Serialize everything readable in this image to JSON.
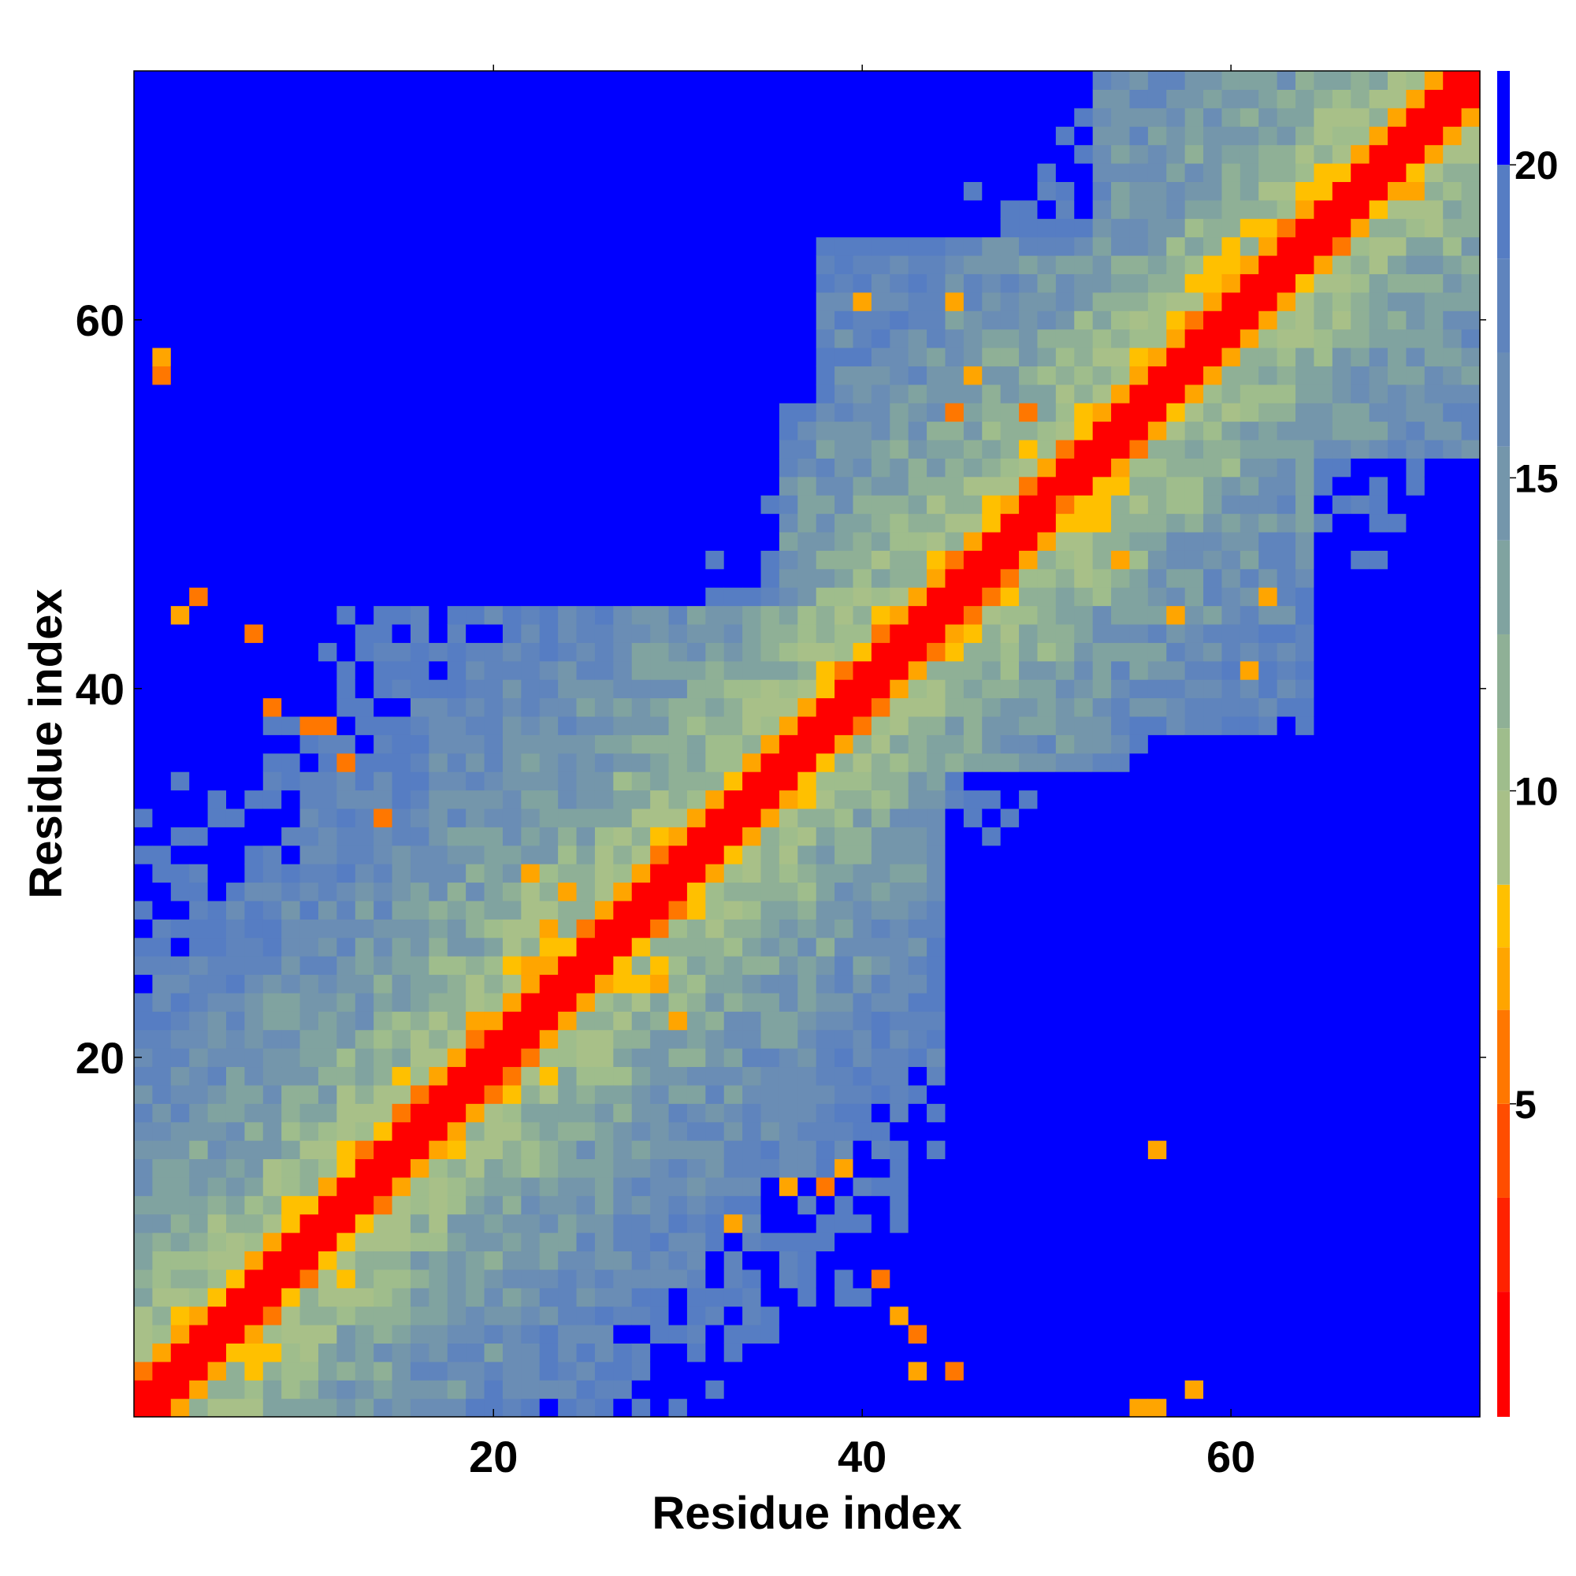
{
  "chart_data": {
    "type": "heatmap",
    "title": "",
    "xlabel": "Residue index",
    "ylabel": "Residue index",
    "n_residues": 73,
    "xlim": [
      0.5,
      73.5
    ],
    "ylim": [
      0.5,
      73.5
    ],
    "x_ticks": [
      20,
      40,
      60
    ],
    "y_ticks": [
      20,
      40,
      60
    ],
    "colorbar": {
      "ticks": [
        5,
        10,
        15,
        20
      ],
      "range": [
        0,
        21.5
      ],
      "levels": [
        {
          "upper": 2.0,
          "color": "#ff0000"
        },
        {
          "upper": 3.5,
          "color": "#ff2200"
        },
        {
          "upper": 5.0,
          "color": "#ff4d00"
        },
        {
          "upper": 6.5,
          "color": "#ff7700"
        },
        {
          "upper": 7.5,
          "color": "#ffa500"
        },
        {
          "upper": 8.5,
          "color": "#ffc000"
        },
        {
          "upper": 10.0,
          "color": "#a8c088"
        },
        {
          "upper": 11.0,
          "color": "#9fbd8c"
        },
        {
          "upper": 12.5,
          "color": "#8fb096"
        },
        {
          "upper": 14.0,
          "color": "#80a3a0"
        },
        {
          "upper": 15.5,
          "color": "#7496ab"
        },
        {
          "upper": 17.0,
          "color": "#6a8db5"
        },
        {
          "upper": 18.5,
          "color": "#5f84bd"
        },
        {
          "upper": 20.0,
          "color": "#567dc3"
        },
        {
          "upper": 999,
          "color": "#0000ff"
        }
      ]
    },
    "description_of_values": "Pairwise residue distance map: value(i,j) grows with |i-j|; diagonal ~0 (red), near-diagonal orange, mid-range green/blue-gray, long-range blue (>20).",
    "contacts": [
      {
        "i": 10,
        "j": 38,
        "value": 6
      },
      {
        "i": 11,
        "j": 38,
        "value": 5.5
      },
      {
        "i": 12,
        "j": 36,
        "value": 6
      },
      {
        "i": 14,
        "j": 33,
        "value": 5
      },
      {
        "i": 8,
        "j": 39,
        "value": 5
      },
      {
        "i": 7,
        "j": 43,
        "value": 6
      },
      {
        "i": 3,
        "j": 44,
        "value": 7
      },
      {
        "i": 4,
        "j": 45,
        "value": 5
      },
      {
        "i": 2,
        "j": 57,
        "value": 6
      },
      {
        "i": 2,
        "j": 58,
        "value": 7
      },
      {
        "i": 36,
        "j": 13,
        "value": 7
      },
      {
        "i": 38,
        "j": 13,
        "value": 6
      },
      {
        "i": 39,
        "j": 14,
        "value": 7
      },
      {
        "i": 41,
        "j": 8,
        "value": 5
      },
      {
        "i": 43,
        "j": 5,
        "value": 6
      },
      {
        "i": 42,
        "j": 6,
        "value": 7
      },
      {
        "i": 45,
        "j": 3,
        "value": 5
      },
      {
        "i": 43,
        "j": 3,
        "value": 7
      },
      {
        "i": 58,
        "j": 2,
        "value": 7
      },
      {
        "i": 56,
        "j": 15,
        "value": 7
      },
      {
        "i": 40,
        "j": 61,
        "value": 7
      },
      {
        "i": 45,
        "j": 61,
        "value": 7
      },
      {
        "i": 46,
        "j": 57,
        "value": 7
      },
      {
        "i": 45,
        "j": 55,
        "value": 6
      },
      {
        "i": 49,
        "j": 55,
        "value": 5
      },
      {
        "i": 51,
        "j": 50,
        "value": 6
      },
      {
        "i": 54,
        "j": 47,
        "value": 7
      },
      {
        "i": 57,
        "j": 44,
        "value": 7
      },
      {
        "i": 62,
        "j": 45,
        "value": 7
      },
      {
        "i": 61,
        "j": 41,
        "value": 7
      },
      {
        "i": 55,
        "j": 1,
        "value": 7
      },
      {
        "i": 56,
        "j": 1,
        "value": 7
      },
      {
        "i": 29,
        "j": 24,
        "value": 7
      },
      {
        "i": 24,
        "j": 29,
        "value": 7
      },
      {
        "i": 22,
        "j": 30,
        "value": 7
      },
      {
        "i": 25,
        "j": 23,
        "value": 7
      },
      {
        "i": 23,
        "j": 27,
        "value": 7
      },
      {
        "i": 30,
        "j": 22,
        "value": 7
      },
      {
        "i": 33,
        "j": 11,
        "value": 7
      }
    ]
  }
}
